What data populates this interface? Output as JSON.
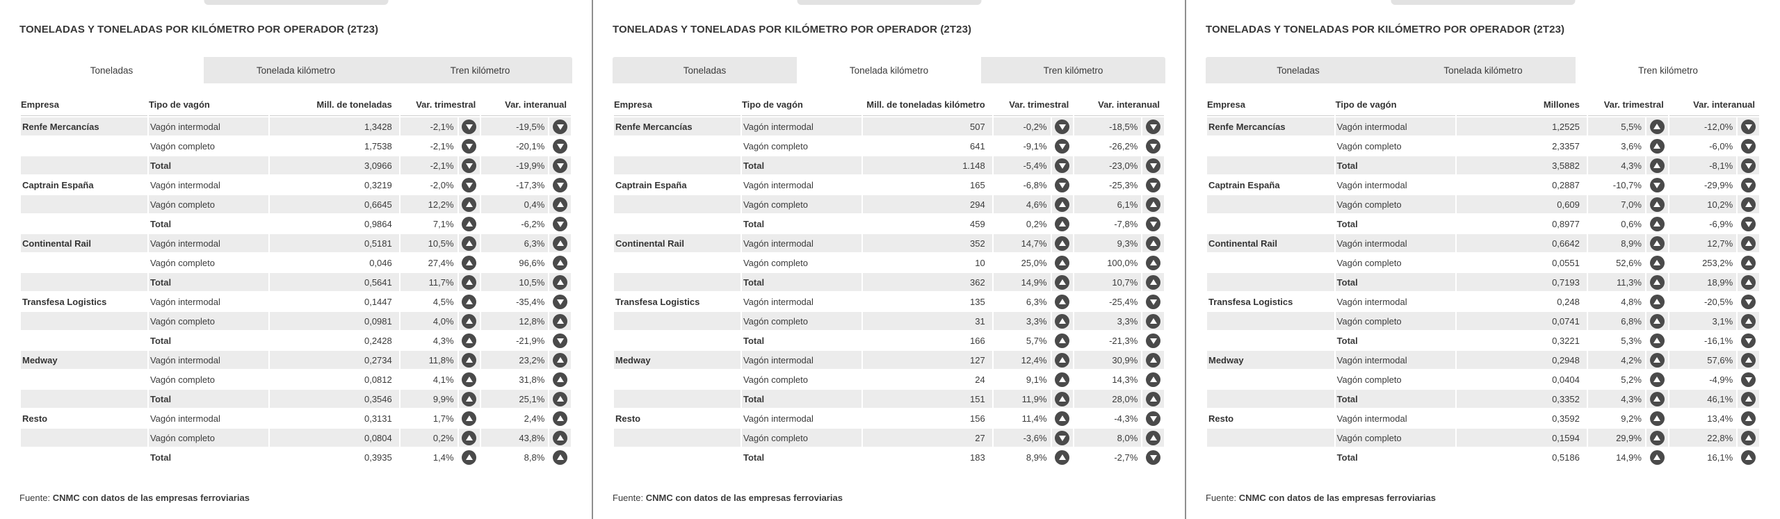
{
  "colors": {
    "row_stripe": "#ececec",
    "tab_inactive_bg": "#e8e8e8",
    "tab_active_bg": "#ffffff",
    "trend_badge": "#4a4a4a",
    "panel_divider": "#8f8f8f",
    "title_text": "#383838"
  },
  "panels": [
    {
      "title": "TONELADAS Y TONELADAS POR KILÓMETRO POR OPERADOR (2T23)",
      "tabs": [
        "Toneladas",
        "Tonelada kilómetro",
        "Tren kilómetro"
      ],
      "active_tab": 0,
      "columns": {
        "empresa": "Empresa",
        "tipo": "Tipo de vagón",
        "valor": "Mill. de toneladas",
        "var_trimestral": "Var. trimestral",
        "var_interanual": "Var. interanual"
      },
      "rows": [
        {
          "empresa": "Renfe Mercancías",
          "tipo": "Vagón intermodal",
          "valor": "1,3428",
          "var_trimestral": "-2,1%",
          "trend_trimestral": "down",
          "var_interanual": "-19,5%",
          "trend_interanual": "down"
        },
        {
          "empresa": "",
          "tipo": "Vagón completo",
          "valor": "1,7538",
          "var_trimestral": "-2,1%",
          "trend_trimestral": "down",
          "var_interanual": "-20,1%",
          "trend_interanual": "down"
        },
        {
          "empresa": "",
          "tipo": "Total",
          "valor": "3,0966",
          "var_trimestral": "-2,1%",
          "trend_trimestral": "down",
          "var_interanual": "-19,9%",
          "trend_interanual": "down"
        },
        {
          "empresa": "Captrain España",
          "tipo": "Vagón intermodal",
          "valor": "0,3219",
          "var_trimestral": "-2,0%",
          "trend_trimestral": "down",
          "var_interanual": "-17,3%",
          "trend_interanual": "down"
        },
        {
          "empresa": "",
          "tipo": "Vagón completo",
          "valor": "0,6645",
          "var_trimestral": "12,2%",
          "trend_trimestral": "up",
          "var_interanual": "0,4%",
          "trend_interanual": "up"
        },
        {
          "empresa": "",
          "tipo": "Total",
          "valor": "0,9864",
          "var_trimestral": "7,1%",
          "trend_trimestral": "up",
          "var_interanual": "-6,2%",
          "trend_interanual": "down"
        },
        {
          "empresa": "Continental Rail",
          "tipo": "Vagón intermodal",
          "valor": "0,5181",
          "var_trimestral": "10,5%",
          "trend_trimestral": "up",
          "var_interanual": "6,3%",
          "trend_interanual": "up"
        },
        {
          "empresa": "",
          "tipo": "Vagón completo",
          "valor": "0,046",
          "var_trimestral": "27,4%",
          "trend_trimestral": "up",
          "var_interanual": "96,6%",
          "trend_interanual": "up"
        },
        {
          "empresa": "",
          "tipo": "Total",
          "valor": "0,5641",
          "var_trimestral": "11,7%",
          "trend_trimestral": "up",
          "var_interanual": "10,5%",
          "trend_interanual": "up"
        },
        {
          "empresa": "Transfesa Logistics",
          "tipo": "Vagón intermodal",
          "valor": "0,1447",
          "var_trimestral": "4,5%",
          "trend_trimestral": "up",
          "var_interanual": "-35,4%",
          "trend_interanual": "down"
        },
        {
          "empresa": "",
          "tipo": "Vagón completo",
          "valor": "0,0981",
          "var_trimestral": "4,0%",
          "trend_trimestral": "up",
          "var_interanual": "12,8%",
          "trend_interanual": "up"
        },
        {
          "empresa": "",
          "tipo": "Total",
          "valor": "0,2428",
          "var_trimestral": "4,3%",
          "trend_trimestral": "up",
          "var_interanual": "-21,9%",
          "trend_interanual": "down"
        },
        {
          "empresa": "Medway",
          "tipo": "Vagón intermodal",
          "valor": "0,2734",
          "var_trimestral": "11,8%",
          "trend_trimestral": "up",
          "var_interanual": "23,2%",
          "trend_interanual": "up"
        },
        {
          "empresa": "",
          "tipo": "Vagón completo",
          "valor": "0,0812",
          "var_trimestral": "4,1%",
          "trend_trimestral": "up",
          "var_interanual": "31,8%",
          "trend_interanual": "up"
        },
        {
          "empresa": "",
          "tipo": "Total",
          "valor": "0,3546",
          "var_trimestral": "9,9%",
          "trend_trimestral": "up",
          "var_interanual": "25,1%",
          "trend_interanual": "up"
        },
        {
          "empresa": "Resto",
          "tipo": "Vagón intermodal",
          "valor": "0,3131",
          "var_trimestral": "1,7%",
          "trend_trimestral": "up",
          "var_interanual": "2,4%",
          "trend_interanual": "up"
        },
        {
          "empresa": "",
          "tipo": "Vagón completo",
          "valor": "0,0804",
          "var_trimestral": "0,2%",
          "trend_trimestral": "up",
          "var_interanual": "43,8%",
          "trend_interanual": "up"
        },
        {
          "empresa": "",
          "tipo": "Total",
          "valor": "0,3935",
          "var_trimestral": "1,4%",
          "trend_trimestral": "up",
          "var_interanual": "8,8%",
          "trend_interanual": "up"
        }
      ],
      "source": {
        "prefix": "Fuente:",
        "text": "CNMC con datos de las empresas ferroviarias"
      }
    },
    {
      "title": "TONELADAS Y TONELADAS POR KILÓMETRO POR OPERADOR (2T23)",
      "tabs": [
        "Toneladas",
        "Tonelada kilómetro",
        "Tren kilómetro"
      ],
      "active_tab": 1,
      "columns": {
        "empresa": "Empresa",
        "tipo": "Tipo de vagón",
        "valor": "Mill. de toneladas kilómetro",
        "var_trimestral": "Var. trimestral",
        "var_interanual": "Var. interanual"
      },
      "rows": [
        {
          "empresa": "Renfe Mercancías",
          "tipo": "Vagón intermodal",
          "valor": "507",
          "var_trimestral": "-0,2%",
          "trend_trimestral": "down",
          "var_interanual": "-18,5%",
          "trend_interanual": "down"
        },
        {
          "empresa": "",
          "tipo": "Vagón completo",
          "valor": "641",
          "var_trimestral": "-9,1%",
          "trend_trimestral": "down",
          "var_interanual": "-26,2%",
          "trend_interanual": "down"
        },
        {
          "empresa": "",
          "tipo": "Total",
          "valor": "1.148",
          "var_trimestral": "-5,4%",
          "trend_trimestral": "down",
          "var_interanual": "-23,0%",
          "trend_interanual": "down"
        },
        {
          "empresa": "Captrain España",
          "tipo": "Vagón intermodal",
          "valor": "165",
          "var_trimestral": "-6,8%",
          "trend_trimestral": "down",
          "var_interanual": "-25,3%",
          "trend_interanual": "down"
        },
        {
          "empresa": "",
          "tipo": "Vagón completo",
          "valor": "294",
          "var_trimestral": "4,6%",
          "trend_trimestral": "up",
          "var_interanual": "6,1%",
          "trend_interanual": "up"
        },
        {
          "empresa": "",
          "tipo": "Total",
          "valor": "459",
          "var_trimestral": "0,2%",
          "trend_trimestral": "up",
          "var_interanual": "-7,8%",
          "trend_interanual": "down"
        },
        {
          "empresa": "Continental Rail",
          "tipo": "Vagón intermodal",
          "valor": "352",
          "var_trimestral": "14,7%",
          "trend_trimestral": "up",
          "var_interanual": "9,3%",
          "trend_interanual": "up"
        },
        {
          "empresa": "",
          "tipo": "Vagón completo",
          "valor": "10",
          "var_trimestral": "25,0%",
          "trend_trimestral": "up",
          "var_interanual": "100,0%",
          "trend_interanual": "up"
        },
        {
          "empresa": "",
          "tipo": "Total",
          "valor": "362",
          "var_trimestral": "14,9%",
          "trend_trimestral": "up",
          "var_interanual": "10,7%",
          "trend_interanual": "up"
        },
        {
          "empresa": "Transfesa Logistics",
          "tipo": "Vagón intermodal",
          "valor": "135",
          "var_trimestral": "6,3%",
          "trend_trimestral": "up",
          "var_interanual": "-25,4%",
          "trend_interanual": "down"
        },
        {
          "empresa": "",
          "tipo": "Vagón completo",
          "valor": "31",
          "var_trimestral": "3,3%",
          "trend_trimestral": "up",
          "var_interanual": "3,3%",
          "trend_interanual": "up"
        },
        {
          "empresa": "",
          "tipo": "Total",
          "valor": "166",
          "var_trimestral": "5,7%",
          "trend_trimestral": "up",
          "var_interanual": "-21,3%",
          "trend_interanual": "down"
        },
        {
          "empresa": "Medway",
          "tipo": "Vagón intermodal",
          "valor": "127",
          "var_trimestral": "12,4%",
          "trend_trimestral": "up",
          "var_interanual": "30,9%",
          "trend_interanual": "up"
        },
        {
          "empresa": "",
          "tipo": "Vagón completo",
          "valor": "24",
          "var_trimestral": "9,1%",
          "trend_trimestral": "up",
          "var_interanual": "14,3%",
          "trend_interanual": "up"
        },
        {
          "empresa": "",
          "tipo": "Total",
          "valor": "151",
          "var_trimestral": "11,9%",
          "trend_trimestral": "up",
          "var_interanual": "28,0%",
          "trend_interanual": "up"
        },
        {
          "empresa": "Resto",
          "tipo": "Vagón intermodal",
          "valor": "156",
          "var_trimestral": "11,4%",
          "trend_trimestral": "up",
          "var_interanual": "-4,3%",
          "trend_interanual": "down"
        },
        {
          "empresa": "",
          "tipo": "Vagón completo",
          "valor": "27",
          "var_trimestral": "-3,6%",
          "trend_trimestral": "down",
          "var_interanual": "8,0%",
          "trend_interanual": "up"
        },
        {
          "empresa": "",
          "tipo": "Total",
          "valor": "183",
          "var_trimestral": "8,9%",
          "trend_trimestral": "up",
          "var_interanual": "-2,7%",
          "trend_interanual": "down"
        }
      ],
      "source": {
        "prefix": "Fuente:",
        "text": "CNMC con datos de las empresas ferroviarias"
      }
    },
    {
      "title": "TONELADAS Y TONELADAS POR KILÓMETRO POR OPERADOR (2T23)",
      "tabs": [
        "Toneladas",
        "Tonelada kilómetro",
        "Tren kilómetro"
      ],
      "active_tab": 2,
      "columns": {
        "empresa": "Empresa",
        "tipo": "Tipo de vagón",
        "valor": "Millones",
        "var_trimestral": "Var. trimestral",
        "var_interanual": "Var. interanual"
      },
      "rows": [
        {
          "empresa": "Renfe Mercancías",
          "tipo": "Vagón intermodal",
          "valor": "1,2525",
          "var_trimestral": "5,5%",
          "trend_trimestral": "up",
          "var_interanual": "-12,0%",
          "trend_interanual": "down"
        },
        {
          "empresa": "",
          "tipo": "Vagón completo",
          "valor": "2,3357",
          "var_trimestral": "3,6%",
          "trend_trimestral": "up",
          "var_interanual": "-6,0%",
          "trend_interanual": "down"
        },
        {
          "empresa": "",
          "tipo": "Total",
          "valor": "3,5882",
          "var_trimestral": "4,3%",
          "trend_trimestral": "up",
          "var_interanual": "-8,1%",
          "trend_interanual": "down"
        },
        {
          "empresa": "Captrain España",
          "tipo": "Vagón intermodal",
          "valor": "0,2887",
          "var_trimestral": "-10,7%",
          "trend_trimestral": "down",
          "var_interanual": "-29,9%",
          "trend_interanual": "down"
        },
        {
          "empresa": "",
          "tipo": "Vagón completo",
          "valor": "0,609",
          "var_trimestral": "7,0%",
          "trend_trimestral": "up",
          "var_interanual": "10,2%",
          "trend_interanual": "up"
        },
        {
          "empresa": "",
          "tipo": "Total",
          "valor": "0,8977",
          "var_trimestral": "0,6%",
          "trend_trimestral": "up",
          "var_interanual": "-6,9%",
          "trend_interanual": "down"
        },
        {
          "empresa": "Continental Rail",
          "tipo": "Vagón intermodal",
          "valor": "0,6642",
          "var_trimestral": "8,9%",
          "trend_trimestral": "up",
          "var_interanual": "12,7%",
          "trend_interanual": "up"
        },
        {
          "empresa": "",
          "tipo": "Vagón completo",
          "valor": "0,0551",
          "var_trimestral": "52,6%",
          "trend_trimestral": "up",
          "var_interanual": "253,2%",
          "trend_interanual": "up"
        },
        {
          "empresa": "",
          "tipo": "Total",
          "valor": "0,7193",
          "var_trimestral": "11,3%",
          "trend_trimestral": "up",
          "var_interanual": "18,9%",
          "trend_interanual": "up"
        },
        {
          "empresa": "Transfesa Logistics",
          "tipo": "Vagón intermodal",
          "valor": "0,248",
          "var_trimestral": "4,8%",
          "trend_trimestral": "up",
          "var_interanual": "-20,5%",
          "trend_interanual": "down"
        },
        {
          "empresa": "",
          "tipo": "Vagón completo",
          "valor": "0,0741",
          "var_trimestral": "6,8%",
          "trend_trimestral": "up",
          "var_interanual": "3,1%",
          "trend_interanual": "up"
        },
        {
          "empresa": "",
          "tipo": "Total",
          "valor": "0,3221",
          "var_trimestral": "5,3%",
          "trend_trimestral": "up",
          "var_interanual": "-16,1%",
          "trend_interanual": "down"
        },
        {
          "empresa": "Medway",
          "tipo": "Vagón intermodal",
          "valor": "0,2948",
          "var_trimestral": "4,2%",
          "trend_trimestral": "up",
          "var_interanual": "57,6%",
          "trend_interanual": "up"
        },
        {
          "empresa": "",
          "tipo": "Vagón completo",
          "valor": "0,0404",
          "var_trimestral": "5,2%",
          "trend_trimestral": "up",
          "var_interanual": "-4,9%",
          "trend_interanual": "down"
        },
        {
          "empresa": "",
          "tipo": "Total",
          "valor": "0,3352",
          "var_trimestral": "4,3%",
          "trend_trimestral": "up",
          "var_interanual": "46,1%",
          "trend_interanual": "up"
        },
        {
          "empresa": "Resto",
          "tipo": "Vagón intermodal",
          "valor": "0,3592",
          "var_trimestral": "9,2%",
          "trend_trimestral": "up",
          "var_interanual": "13,4%",
          "trend_interanual": "up"
        },
        {
          "empresa": "",
          "tipo": "Vagón completo",
          "valor": "0,1594",
          "var_trimestral": "29,9%",
          "trend_trimestral": "up",
          "var_interanual": "22,8%",
          "trend_interanual": "up"
        },
        {
          "empresa": "",
          "tipo": "Total",
          "valor": "0,5186",
          "var_trimestral": "14,9%",
          "trend_trimestral": "up",
          "var_interanual": "16,1%",
          "trend_interanual": "up"
        }
      ],
      "source": {
        "prefix": "Fuente:",
        "text": "CNMC con datos de las empresas ferroviarias"
      }
    }
  ]
}
